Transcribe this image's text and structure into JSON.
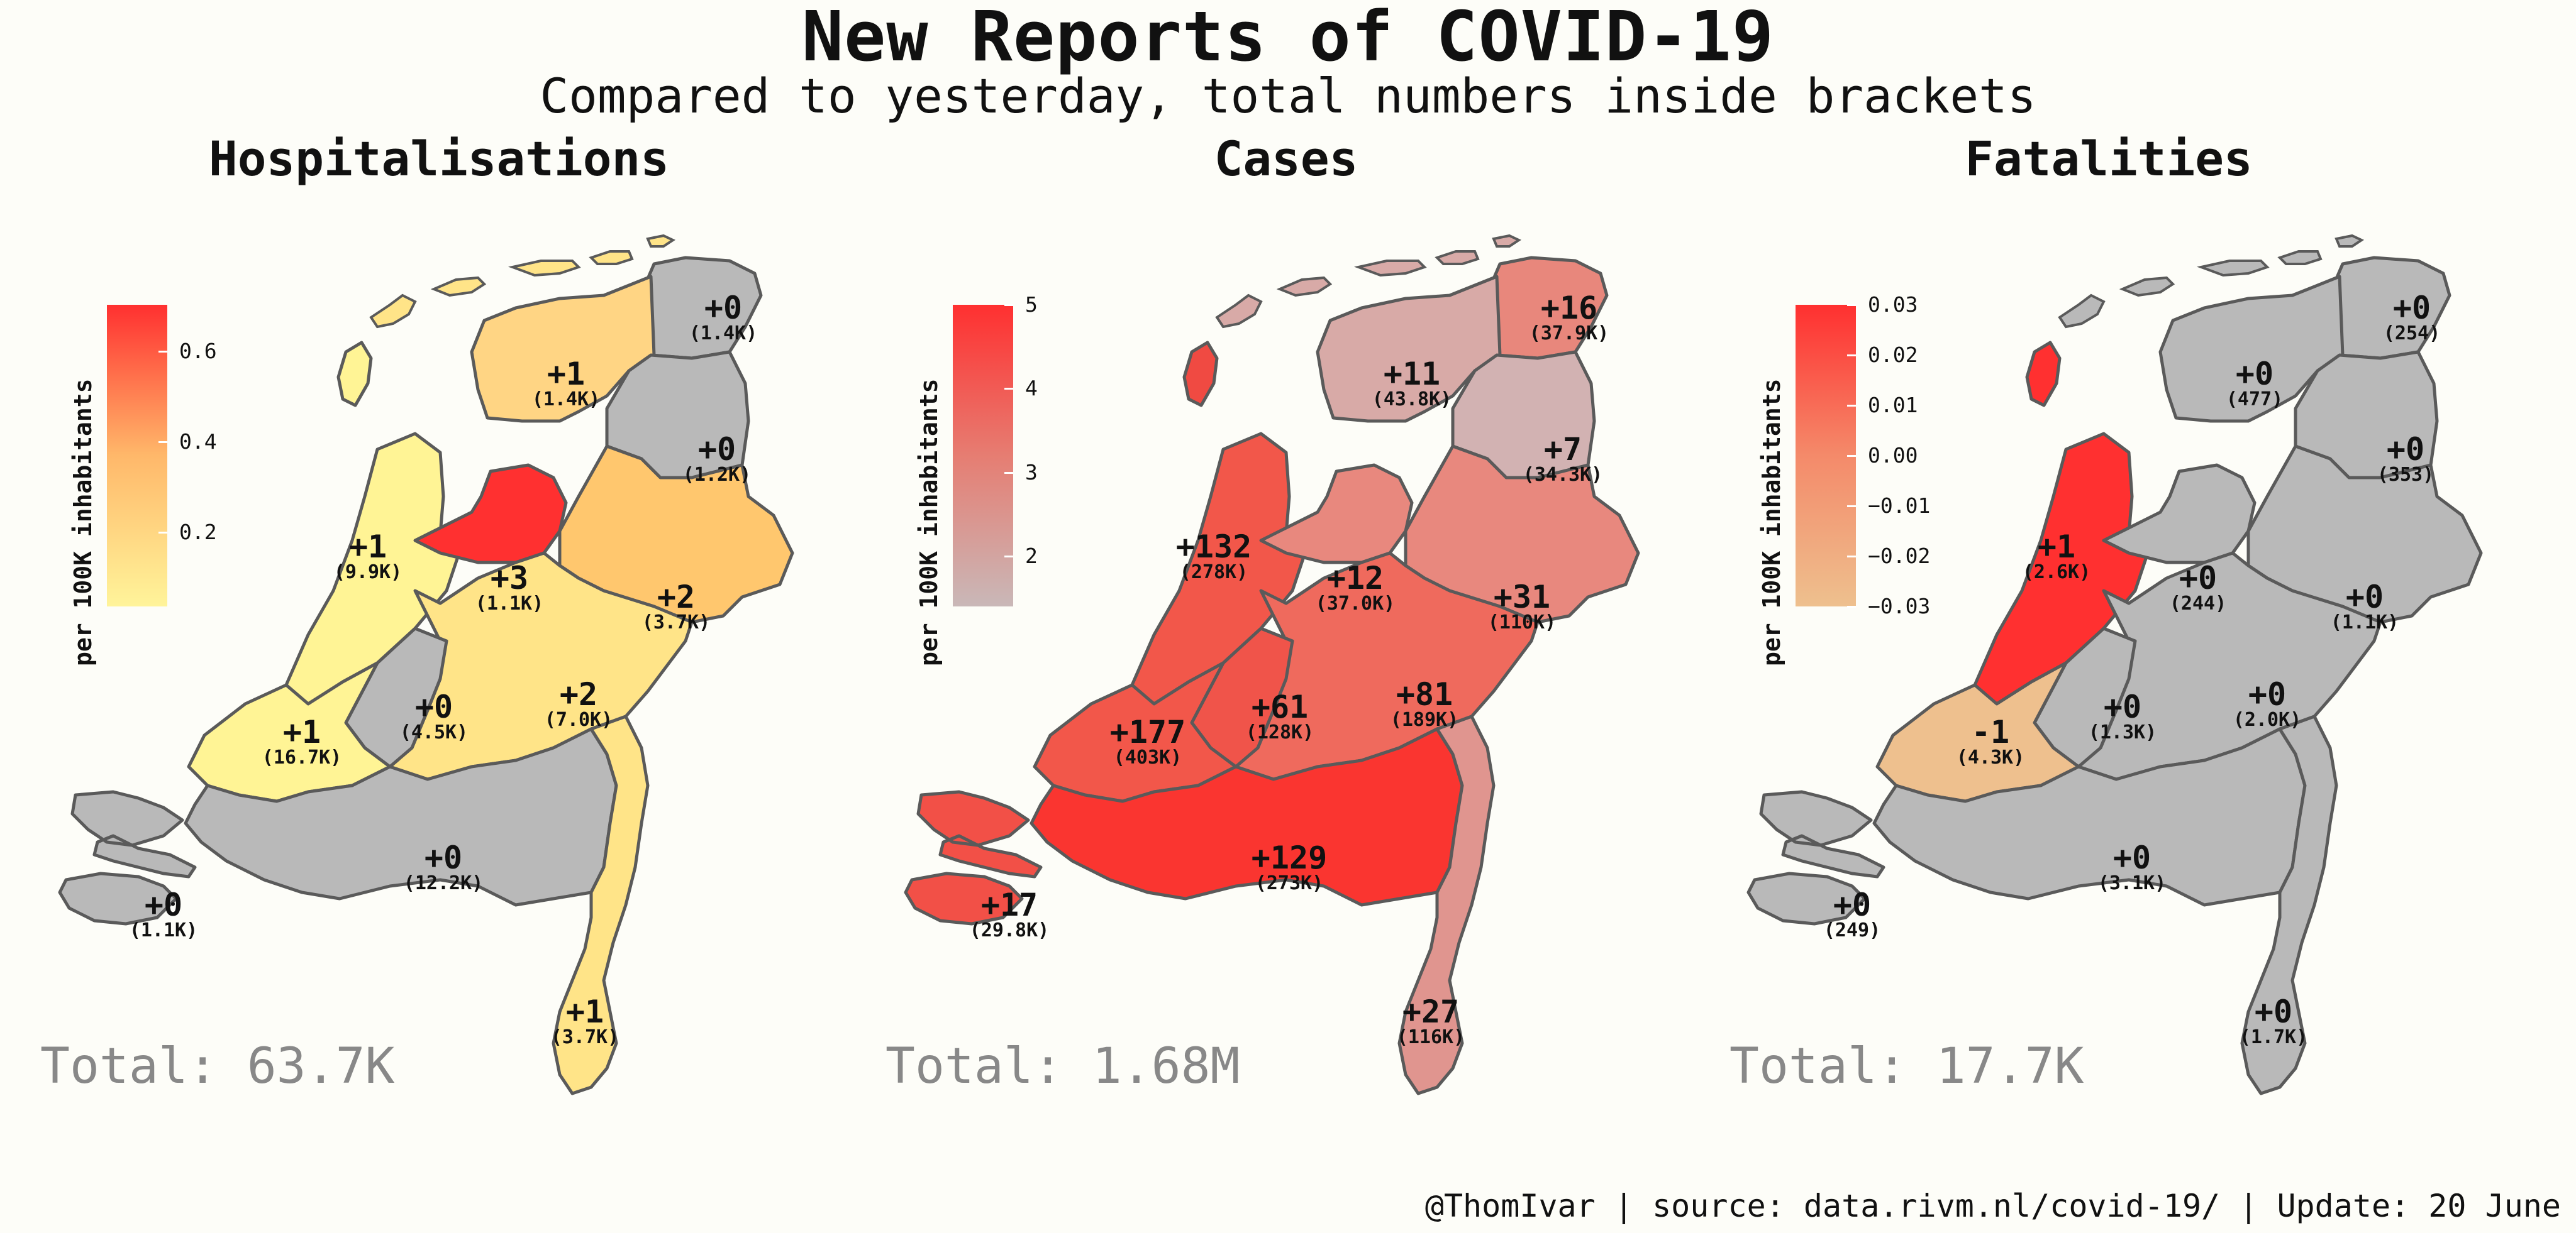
{
  "title": "New Reports of COVID-19",
  "subtitle": "Compared to yesterday, total numbers inside brackets",
  "footer": "@ThomIvar | source: data.rivm.nl/covid-19/ | Update: 20 June",
  "legend_axis_label": "per 100K inhabitants",
  "colors": {
    "grey": "#b9b9b9",
    "background": "#fdfdf8"
  },
  "panels": [
    {
      "id": "hospitalisations",
      "title": "Hospitalisations",
      "total": "Total: 63.7K",
      "legend": {
        "gradient": [
          "#ff3030",
          "#ffb86a",
          "#fff49a"
        ],
        "ticks": [
          {
            "label": "0.6",
            "frac": 0.155
          },
          {
            "label": "0.4",
            "frac": 0.455
          },
          {
            "label": "0.2",
            "frac": 0.755
          }
        ]
      },
      "regions": {
        "Groningen": "#b9b9b9",
        "Friesland": "#ffd584",
        "Drenthe": "#b9b9b9",
        "Noord-Holland": "#fff495",
        "Flevoland": "#ff3030",
        "Overijssel": "#ffc76e",
        "Gelderland": "#ffe488",
        "Utrecht": "#b9b9b9",
        "Zuid-Holland": "#fff495",
        "Zeeland": "#b9b9b9",
        "Noord-Brabant": "#b9b9b9",
        "Limburg": "#ffe488",
        "Texel": "#fff495",
        "Islands": "#ffe488"
      },
      "labels": [
        {
          "d": "+0",
          "t": "(1.4K)"
        },
        {
          "d": "+1",
          "t": "(1.4K)"
        },
        {
          "d": "+0",
          "t": "(1.2K)"
        },
        {
          "d": "+1",
          "t": "(9.9K)"
        },
        {
          "d": "+3",
          "t": "(1.1K)"
        },
        {
          "d": "+2",
          "t": "(3.7K)"
        },
        {
          "d": "+2",
          "t": "(7.0K)"
        },
        {
          "d": "+0",
          "t": "(4.5K)"
        },
        {
          "d": "+1",
          "t": "(16.7K)"
        },
        {
          "d": "+0",
          "t": "(12.2K)"
        },
        {
          "d": "+0",
          "t": "(1.1K)"
        },
        {
          "d": "+1",
          "t": "(3.7K)"
        }
      ]
    },
    {
      "id": "cases",
      "title": "Cases",
      "total": "Total: 1.68M",
      "legend": {
        "gradient": [
          "#ff3030",
          "#e67d72",
          "#c9b8b8"
        ],
        "ticks": [
          {
            "label": "5",
            "frac": 0.0
          },
          {
            "label": "4",
            "frac": 0.278
          },
          {
            "label": "3",
            "frac": 0.556
          },
          {
            "label": "2",
            "frac": 0.833
          }
        ]
      },
      "regions": {
        "Groningen": "#e8877c",
        "Friesland": "#d8aaa7",
        "Drenthe": "#d2b2b2",
        "Noord-Holland": "#f2574a",
        "Flevoland": "#e8887e",
        "Overijssel": "#e8887e",
        "Gelderland": "#ef6a5d",
        "Utrecht": "#f0544a",
        "Zuid-Holland": "#f2574a",
        "Zeeland": "#f25047",
        "Noord-Brabant": "#fa3530",
        "Limburg": "#e0958f",
        "Texel": "#f04a42",
        "Islands": "#d8aaa7"
      },
      "labels": [
        {
          "d": "+16",
          "t": "(37.9K)"
        },
        {
          "d": "+11",
          "t": "(43.8K)"
        },
        {
          "d": "+7",
          "t": "(34.3K)"
        },
        {
          "d": "+132",
          "t": "(278K)"
        },
        {
          "d": "+12",
          "t": "(37.0K)"
        },
        {
          "d": "+31",
          "t": "(110K)"
        },
        {
          "d": "+81",
          "t": "(189K)"
        },
        {
          "d": "+61",
          "t": "(128K)"
        },
        {
          "d": "+177",
          "t": "(403K)"
        },
        {
          "d": "+129",
          "t": "(273K)"
        },
        {
          "d": "+17",
          "t": "(29.8K)"
        },
        {
          "d": "+27",
          "t": "(116K)"
        }
      ]
    },
    {
      "id": "fatalities",
      "title": "Fatalities",
      "total": "Total: 17.7K",
      "legend": {
        "gradient": [
          "#ff3030",
          "#f48a6a",
          "#eec08e"
        ],
        "ticks": [
          {
            "label": "0.03",
            "frac": 0.0
          },
          {
            "label": "0.02",
            "frac": 0.167
          },
          {
            "label": "0.01",
            "frac": 0.333
          },
          {
            "label": "0.00",
            "frac": 0.5
          },
          {
            "label": "−0.01",
            "frac": 0.667
          },
          {
            "label": "−0.02",
            "frac": 0.833
          },
          {
            "label": "−0.03",
            "frac": 1.0
          }
        ]
      },
      "regions": {
        "Groningen": "#b9b9b9",
        "Friesland": "#b9b9b9",
        "Drenthe": "#b9b9b9",
        "Noord-Holland": "#ff3030",
        "Flevoland": "#b9b9b9",
        "Overijssel": "#b9b9b9",
        "Gelderland": "#b9b9b9",
        "Utrecht": "#b9b9b9",
        "Zuid-Holland": "#eec08e",
        "Zeeland": "#b9b9b9",
        "Noord-Brabant": "#b9b9b9",
        "Limburg": "#b9b9b9",
        "Texel": "#ff3030",
        "Islands": "#b9b9b9"
      },
      "labels": [
        {
          "d": "+0",
          "t": "(254)"
        },
        {
          "d": "+0",
          "t": "(477)"
        },
        {
          "d": "+0",
          "t": "(353)"
        },
        {
          "d": "+1",
          "t": "(2.6K)"
        },
        {
          "d": "+0",
          "t": "(244)"
        },
        {
          "d": "+0",
          "t": "(1.1K)"
        },
        {
          "d": "+0",
          "t": "(2.0K)"
        },
        {
          "d": "+0",
          "t": "(1.3K)"
        },
        {
          "d": "-1",
          "t": "(4.3K)"
        },
        {
          "d": "+0",
          "t": "(3.1K)"
        },
        {
          "d": "+0",
          "t": "(249)"
        },
        {
          "d": "+0",
          "t": "(1.7K)"
        }
      ]
    }
  ]
}
